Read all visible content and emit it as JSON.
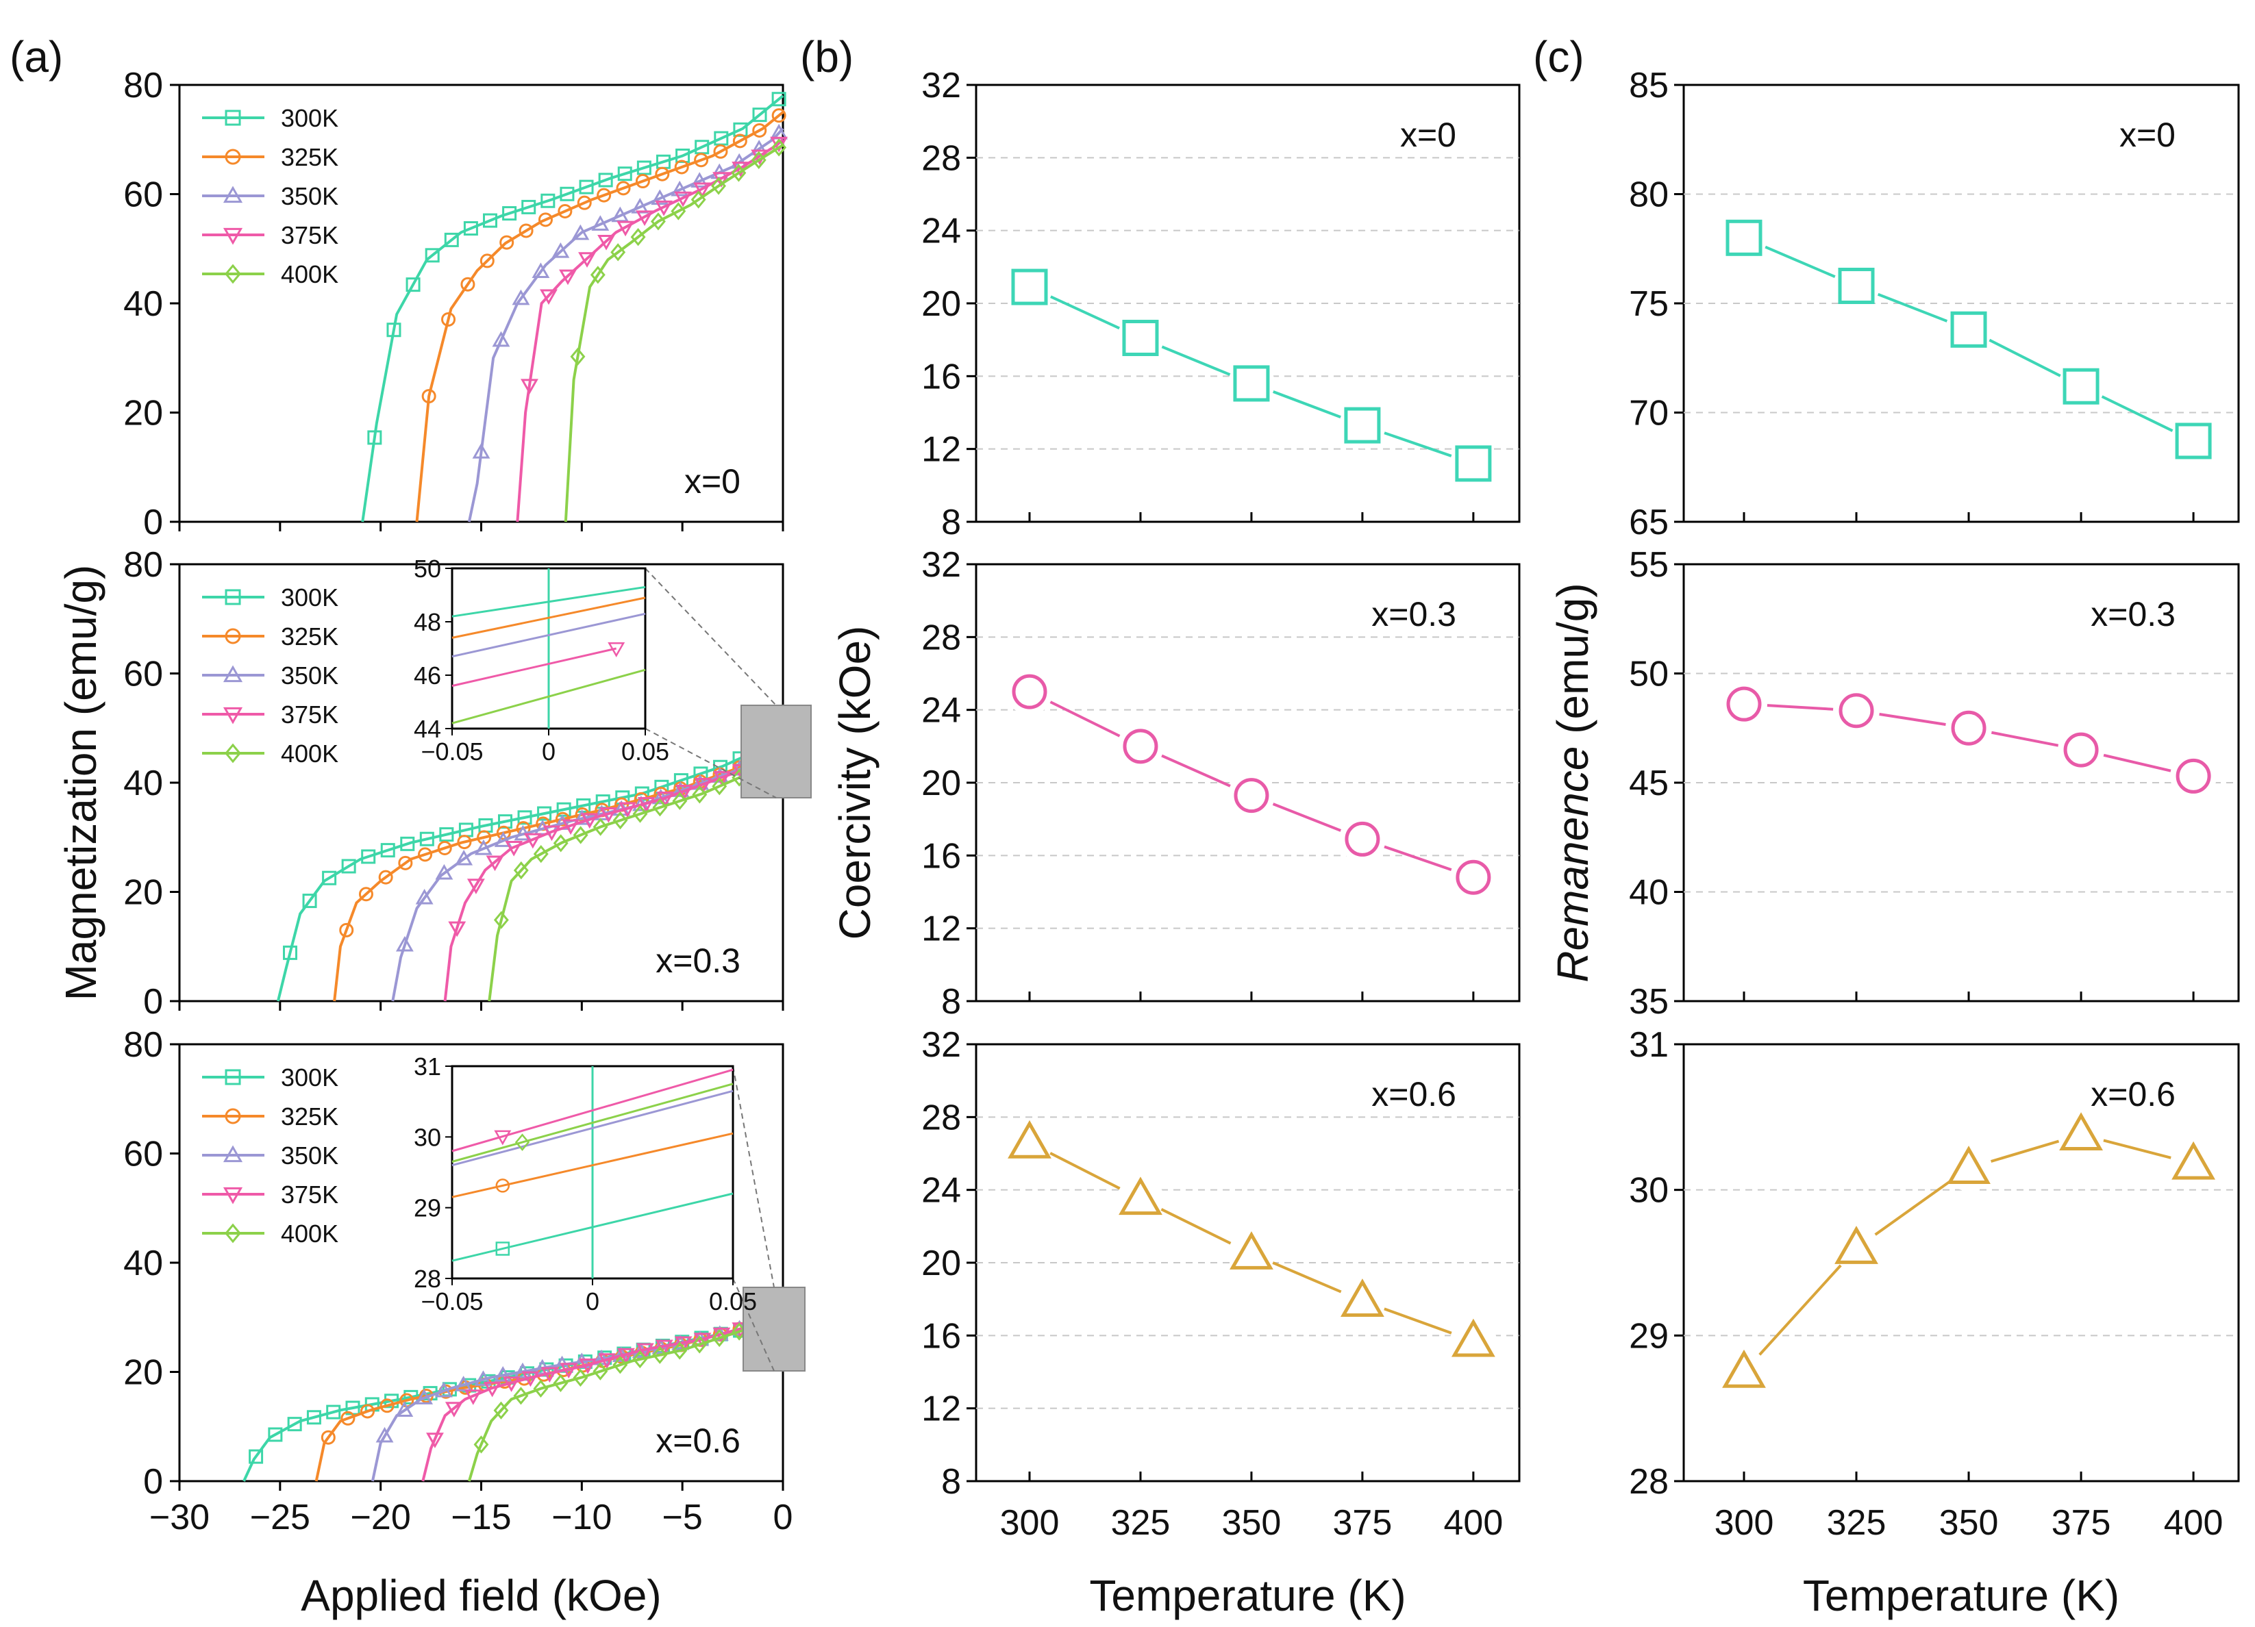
{
  "colors": {
    "c300": "#3dd6a8",
    "c325": "#f5892a",
    "c350": "#9b97d4",
    "c375": "#ef5aa8",
    "c400": "#8cd14a",
    "x0": "#3dd6b6",
    "x03": "#e85aa8",
    "x06": "#d9a53a"
  },
  "panel_labels": {
    "a": "(a)",
    "b": "(b)",
    "c": "(c)"
  },
  "legend": [
    {
      "label": "300K",
      "marker": "square",
      "color": "#3dd6a8"
    },
    {
      "label": "325K",
      "marker": "circle",
      "color": "#f5892a"
    },
    {
      "label": "350K",
      "marker": "triangle-up",
      "color": "#9b97d4"
    },
    {
      "label": "375K",
      "marker": "triangle-down",
      "color": "#ef5aa8"
    },
    {
      "label": "400K",
      "marker": "diamond",
      "color": "#8cd14a"
    }
  ],
  "chart_data": [
    {
      "id": "a-x0",
      "type": "line",
      "panel": "(a)",
      "annotation": "x=0",
      "xlim": [
        -30,
        0
      ],
      "ylim": [
        0,
        80
      ],
      "xticks": [
        "−30",
        "−25",
        "−20",
        "−15",
        "−10",
        "−5",
        "0"
      ],
      "yticks": [
        "0",
        "20",
        "40",
        "60",
        "80"
      ],
      "series": [
        {
          "name": "300K",
          "x": [
            -20.9,
            -20.2,
            -19.2,
            -17.7,
            -16.0,
            -14.0,
            -11.5,
            -8.5,
            -5.0,
            -2.0,
            0
          ],
          "y": [
            0,
            18,
            38,
            48,
            53,
            56,
            59,
            63,
            67,
            72,
            78
          ]
        },
        {
          "name": "325K",
          "x": [
            -18.2,
            -17.6,
            -16.5,
            -15.2,
            -13.8,
            -12.0,
            -9.5,
            -6.5,
            -3.5,
            -1.0,
            0
          ],
          "y": [
            0,
            23,
            39,
            46,
            51,
            55,
            59,
            63,
            67,
            72,
            75
          ]
        },
        {
          "name": "350K",
          "x": [
            -15.6,
            -15.2,
            -14.4,
            -13.2,
            -11.8,
            -10.0,
            -7.5,
            -5.0,
            -2.5,
            -0.5,
            0
          ],
          "y": [
            0,
            7,
            30,
            40,
            47,
            53,
            57,
            61,
            65,
            70,
            72
          ]
        },
        {
          "name": "375K",
          "x": [
            -13.2,
            -12.8,
            -12.0,
            -11.0,
            -9.8,
            -8.3,
            -6.3,
            -4.0,
            -2.0,
            -0.3,
            0
          ],
          "y": [
            0,
            20,
            40,
            44,
            48,
            53,
            57,
            61,
            65,
            69,
            70
          ]
        },
        {
          "name": "400K",
          "x": [
            -10.8,
            -10.4,
            -9.6,
            -8.7,
            -7.6,
            -6.2,
            -4.6,
            -3.0,
            -1.3,
            0
          ],
          "y": [
            0,
            26,
            43,
            48,
            51,
            55,
            58,
            62,
            66,
            69
          ]
        }
      ]
    },
    {
      "id": "a-x03",
      "type": "line",
      "annotation": "x=0.3",
      "xlim": [
        -30,
        0
      ],
      "ylim": [
        0,
        80
      ],
      "xticks": [
        "−30",
        "−25",
        "−20",
        "−15",
        "−10",
        "−5",
        "0"
      ],
      "yticks": [
        "0",
        "20",
        "40",
        "60",
        "80"
      ],
      "ylabel": "Magnetization (emu/g)",
      "series": [
        {
          "name": "300K",
          "x": [
            -25.1,
            -24.7,
            -24.0,
            -22.8,
            -21.0,
            -18.5,
            -15.0,
            -11.0,
            -7.0,
            -3.0,
            0
          ],
          "y": [
            0,
            6,
            16,
            22,
            26,
            29,
            32,
            35,
            38,
            43,
            48
          ]
        },
        {
          "name": "325K",
          "x": [
            -22.3,
            -22.0,
            -21.2,
            -20.0,
            -18.5,
            -16.0,
            -12.5,
            -9.0,
            -5.0,
            -2.0,
            0
          ],
          "y": [
            0,
            10,
            18,
            22,
            26,
            29,
            32,
            35,
            39,
            43,
            47
          ]
        },
        {
          "name": "350K",
          "x": [
            -19.4,
            -19.0,
            -18.2,
            -17.0,
            -15.5,
            -13.5,
            -10.5,
            -7.0,
            -4.0,
            -1.0,
            0
          ],
          "y": [
            0,
            8,
            17,
            23,
            27,
            30,
            33,
            36,
            40,
            44,
            46
          ]
        },
        {
          "name": "375K",
          "x": [
            -16.8,
            -16.5,
            -15.8,
            -14.8,
            -13.5,
            -11.5,
            -9.0,
            -6.0,
            -3.0,
            0
          ],
          "y": [
            0,
            10,
            18,
            24,
            28,
            31,
            34,
            37,
            41,
            45
          ]
        },
        {
          "name": "400K",
          "x": [
            -14.6,
            -14.2,
            -13.5,
            -12.5,
            -11.0,
            -9.0,
            -6.5,
            -4.0,
            -1.5,
            0
          ],
          "y": [
            0,
            12,
            22,
            26,
            29,
            32,
            35,
            38,
            42,
            44
          ]
        }
      ],
      "inset": {
        "xlim": [
          -0.05,
          0.05
        ],
        "ylim": [
          44,
          50
        ],
        "xticks": [
          "−0.05",
          "0",
          "0.05"
        ],
        "yticks": [
          "44",
          "46",
          "48",
          "50"
        ],
        "series": [
          {
            "name": "300K",
            "x": [
              -0.05,
              0.05
            ],
            "y": [
              48.2,
              49.3
            ]
          },
          {
            "name": "325K",
            "x": [
              -0.05,
              0.05
            ],
            "y": [
              47.4,
              48.9
            ]
          },
          {
            "name": "350K",
            "x": [
              -0.05,
              0.05
            ],
            "y": [
              46.7,
              48.3
            ]
          },
          {
            "name": "375K",
            "x": [
              -0.05,
              0.035
            ],
            "y": [
              45.6,
              47.0
            ]
          },
          {
            "name": "400K",
            "x": [
              -0.05,
              0.05
            ],
            "y": [
              44.2,
              46.2
            ]
          }
        ]
      }
    },
    {
      "id": "a-x06",
      "type": "line",
      "annotation": "x=0.6",
      "xlim": [
        -30,
        0
      ],
      "ylim": [
        0,
        80
      ],
      "xticks": [
        "−30",
        "−25",
        "−20",
        "−15",
        "−10",
        "−5",
        "0"
      ],
      "yticks": [
        "0",
        "20",
        "40",
        "60",
        "80"
      ],
      "xlabel": "Applied field (kOe)",
      "series": [
        {
          "name": "300K",
          "x": [
            -26.8,
            -26.3,
            -25.5,
            -24.0,
            -22.0,
            -19.0,
            -15.0,
            -11.0,
            -7.0,
            -3.0,
            0
          ],
          "y": [
            0,
            4,
            8,
            11,
            13,
            15,
            18,
            21,
            24,
            27,
            29
          ]
        },
        {
          "name": "325K",
          "x": [
            -23.2,
            -22.8,
            -22.0,
            -20.5,
            -18.5,
            -16.0,
            -12.5,
            -9.0,
            -5.0,
            -2.0,
            0
          ],
          "y": [
            0,
            7,
            11,
            13,
            15,
            17,
            19,
            22,
            25,
            28,
            30
          ]
        },
        {
          "name": "350K",
          "x": [
            -20.4,
            -20.0,
            -19.2,
            -18.0,
            -16.5,
            -14.5,
            -11.5,
            -8.0,
            -4.0,
            -1.0,
            0
          ],
          "y": [
            0,
            7,
            12,
            15,
            17,
            19,
            21,
            23,
            26,
            29,
            30
          ]
        },
        {
          "name": "375K",
          "x": [
            -17.9,
            -17.5,
            -16.8,
            -15.8,
            -14.5,
            -12.5,
            -10.0,
            -7.0,
            -4.0,
            -1.0,
            0
          ],
          "y": [
            0,
            6,
            12,
            15,
            17,
            19,
            21,
            24,
            26,
            29,
            30
          ]
        },
        {
          "name": "400K",
          "x": [
            -15.6,
            -15.2,
            -14.5,
            -13.5,
            -12.0,
            -10.0,
            -7.5,
            -5.0,
            -2.5,
            0
          ],
          "y": [
            0,
            5,
            11,
            15,
            17,
            19,
            22,
            24,
            27,
            30
          ]
        }
      ],
      "inset": {
        "xlim": [
          -0.05,
          0.05
        ],
        "ylim": [
          28,
          31
        ],
        "xticks": [
          "−0.05",
          "0",
          "0.05"
        ],
        "yticks": [
          "28",
          "29",
          "30",
          "31"
        ],
        "series": [
          {
            "name": "300K",
            "x": [
              -0.05,
              0.05
            ],
            "y": [
              28.25,
              29.2
            ]
          },
          {
            "name": "325K",
            "x": [
              -0.05,
              0.05
            ],
            "y": [
              29.15,
              30.05
            ]
          },
          {
            "name": "350K",
            "x": [
              -0.05,
              0.05
            ],
            "y": [
              29.6,
              30.65
            ]
          },
          {
            "name": "375K",
            "x": [
              -0.05,
              0.05
            ],
            "y": [
              29.8,
              30.95
            ]
          },
          {
            "name": "400K",
            "x": [
              -0.05,
              0.05
            ],
            "y": [
              29.65,
              30.75
            ]
          }
        ]
      }
    },
    {
      "id": "b-x0",
      "type": "line",
      "panel": "(b)",
      "annotation": "x=0",
      "xlim": [
        300,
        400
      ],
      "ylim": [
        8,
        32
      ],
      "xticks": [
        "300",
        "325",
        "350",
        "375",
        "400"
      ],
      "yticks": [
        "8",
        "12",
        "16",
        "20",
        "24",
        "28",
        "32"
      ],
      "categories": [
        300,
        325,
        350,
        375,
        400
      ],
      "values": [
        20.9,
        18.1,
        15.6,
        13.3,
        11.2
      ],
      "marker": "square",
      "color": "#3dd6b6"
    },
    {
      "id": "b-x03",
      "type": "line",
      "annotation": "x=0.3",
      "xlim": [
        300,
        400
      ],
      "ylim": [
        8,
        32
      ],
      "xticks": [
        "300",
        "325",
        "350",
        "375",
        "400"
      ],
      "yticks": [
        "8",
        "12",
        "16",
        "20",
        "24",
        "28",
        "32"
      ],
      "ylabel": "Coercivity (kOe)",
      "categories": [
        300,
        325,
        350,
        375,
        400
      ],
      "values": [
        25.0,
        22.0,
        19.3,
        16.9,
        14.8
      ],
      "marker": "circle",
      "color": "#e85aa8"
    },
    {
      "id": "b-x06",
      "type": "line",
      "annotation": "x=0.6",
      "xlim": [
        300,
        400
      ],
      "ylim": [
        8,
        32
      ],
      "xticks": [
        "300",
        "325",
        "350",
        "375",
        "400"
      ],
      "yticks": [
        "8",
        "12",
        "16",
        "20",
        "24",
        "28",
        "32"
      ],
      "xlabel": "Temperature  (K)",
      "categories": [
        300,
        325,
        350,
        375,
        400
      ],
      "values": [
        26.6,
        23.5,
        20.5,
        17.9,
        15.7
      ],
      "marker": "triangle",
      "color": "#d9a53a"
    },
    {
      "id": "c-x0",
      "type": "line",
      "panel": "(c)",
      "annotation": "x=0",
      "xlim": [
        300,
        400
      ],
      "ylim": [
        65,
        85
      ],
      "xticks": [
        "300",
        "325",
        "350",
        "375",
        "400"
      ],
      "yticks": [
        "65",
        "70",
        "75",
        "80",
        "85"
      ],
      "categories": [
        300,
        325,
        350,
        375,
        400
      ],
      "values": [
        78.0,
        75.8,
        73.8,
        71.2,
        68.7
      ],
      "marker": "square",
      "color": "#3dd6b6"
    },
    {
      "id": "c-x03",
      "type": "line",
      "annotation": "x=0.3",
      "xlim": [
        300,
        400
      ],
      "ylim": [
        35,
        55
      ],
      "xticks": [
        "300",
        "325",
        "350",
        "375",
        "400"
      ],
      "yticks": [
        "35",
        "40",
        "45",
        "50",
        "55"
      ],
      "ylabel_italic": "Remanence",
      "ylabel_tail": " (emu/g)",
      "categories": [
        300,
        325,
        350,
        375,
        400
      ],
      "values": [
        48.6,
        48.3,
        47.5,
        46.5,
        45.3
      ],
      "marker": "circle",
      "color": "#e85aa8"
    },
    {
      "id": "c-x06",
      "type": "line",
      "annotation": "x=0.6",
      "xlim": [
        300,
        400
      ],
      "ylim": [
        28,
        31
      ],
      "xticks": [
        "300",
        "325",
        "350",
        "375",
        "400"
      ],
      "yticks": [
        "28",
        "29",
        "30",
        "31"
      ],
      "xlabel": "Temperature  (K)",
      "categories": [
        300,
        325,
        350,
        375,
        400
      ],
      "values": [
        28.75,
        29.6,
        30.15,
        30.38,
        30.18
      ],
      "marker": "triangle",
      "color": "#d9a53a"
    }
  ]
}
